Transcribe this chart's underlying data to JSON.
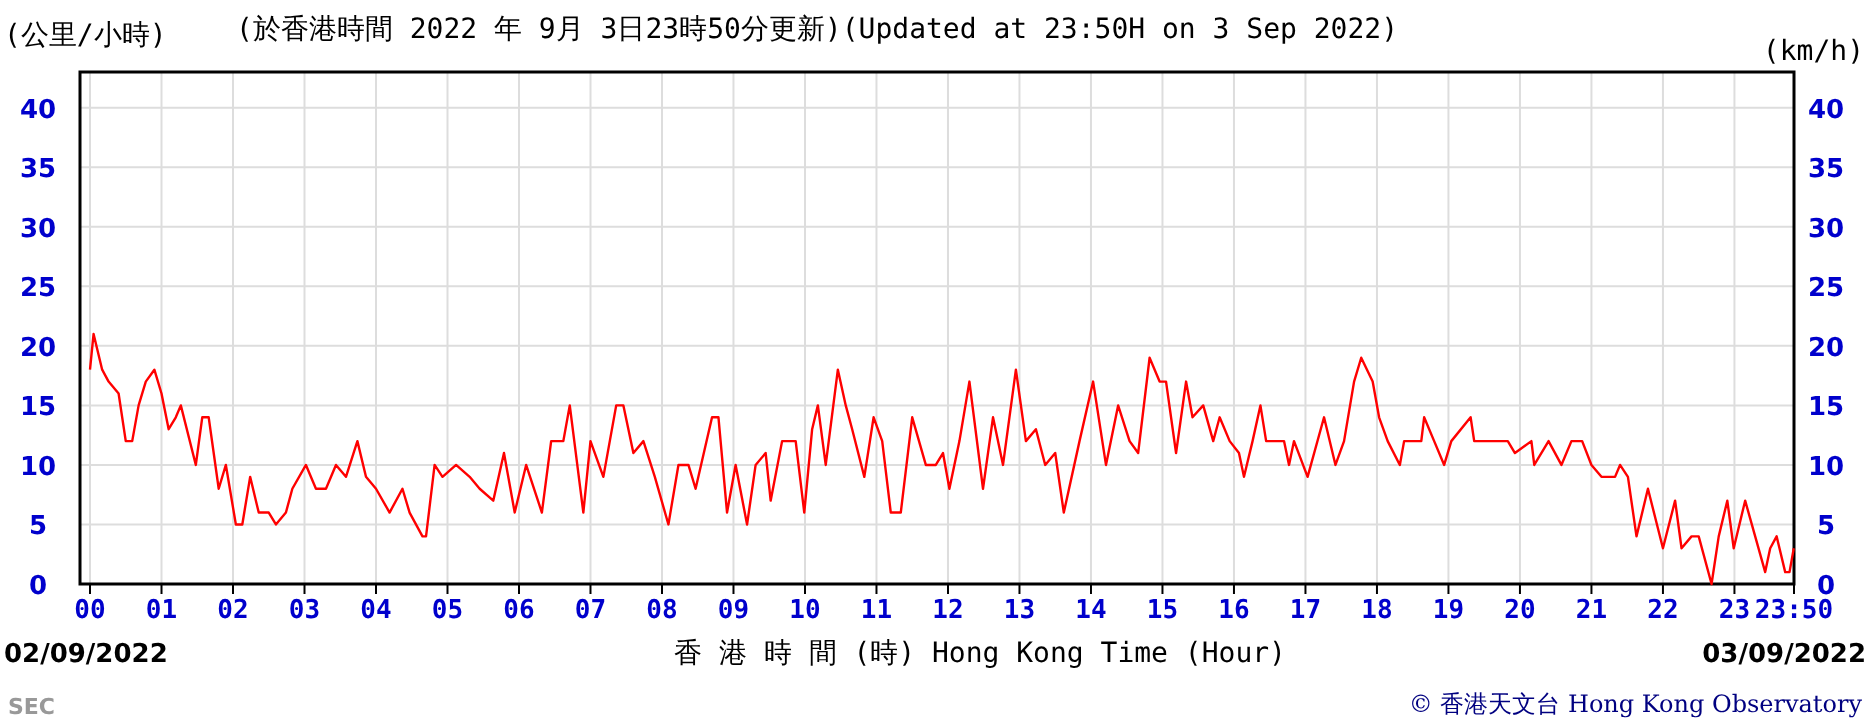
{
  "chart_data": {
    "type": "line",
    "title": "(於香港時間 2022 年 9月 3日23時50分更新)(Updated at 23:50H on 3 Sep 2022)",
    "xlabel": "香 港 時 間 (時) Hong Kong Time (Hour)",
    "ylabel": "(公里/小時)",
    "y2label": "(km/h)",
    "x": [
      0,
      0.05,
      0.17,
      0.26,
      0.4,
      0.5,
      0.59,
      0.68,
      0.78,
      0.9,
      1.0,
      1.1,
      1.2,
      1.27,
      1.48,
      1.57,
      1.66,
      1.8,
      1.9,
      2.04,
      2.13,
      2.24,
      2.36,
      2.5,
      2.6,
      2.74,
      2.83,
      3.02,
      3.16,
      3.3,
      3.44,
      3.58,
      3.74,
      3.86,
      4.0,
      4.19,
      4.37,
      4.47,
      4.65,
      4.7,
      4.82,
      4.93,
      5.12,
      5.31,
      5.45,
      5.64,
      5.79,
      5.94,
      6.1,
      6.32,
      6.45,
      6.62,
      6.71,
      6.9,
      7.0,
      7.18,
      7.36,
      7.46,
      7.6,
      7.74,
      7.9,
      8.09,
      8.23,
      8.37,
      8.47,
      8.7,
      8.79,
      8.91,
      9.03,
      9.19,
      9.31,
      9.45,
      9.52,
      9.68,
      9.87,
      9.99,
      10.1,
      10.18,
      10.29,
      10.46,
      10.57,
      10.66,
      10.83,
      10.96,
      11.08,
      11.2,
      11.34,
      11.5,
      11.69,
      11.83,
      11.93,
      12.02,
      12.16,
      12.3,
      12.49,
      12.63,
      12.77,
      12.95,
      13.09,
      13.23,
      13.36,
      13.5,
      13.62,
      13.84,
      14.03,
      14.21,
      14.38,
      14.54,
      14.66,
      14.82,
      14.96,
      15.05,
      15.19,
      15.33,
      15.42,
      15.57,
      15.71,
      15.8,
      15.94,
      16.07,
      16.14,
      16.26,
      16.37,
      16.45,
      16.7,
      16.77,
      16.84,
      17.03,
      17.26,
      17.42,
      17.54,
      17.68,
      17.78,
      17.94,
      18.03,
      18.15,
      18.32,
      18.38,
      18.62,
      18.66,
      18.8,
      18.94,
      19.04,
      19.31,
      19.36,
      19.83,
      19.93,
      20.16,
      20.2,
      20.4,
      20.58,
      20.72,
      20.87,
      21.0,
      21.14,
      21.33,
      21.4,
      21.51,
      21.63,
      21.79,
      22.0,
      22.17,
      22.26,
      22.4,
      22.5,
      22.68,
      22.78,
      22.9,
      22.99,
      23.15,
      23.29,
      23.43,
      23.5,
      23.59,
      23.71,
      23.77,
      23.83
    ],
    "values": [
      18,
      21,
      18,
      17,
      16,
      12,
      12,
      15,
      17,
      18,
      16,
      13,
      14,
      15,
      10,
      14,
      14,
      8,
      10,
      5,
      5,
      9,
      6,
      6,
      5,
      6,
      8,
      10,
      8,
      8,
      10,
      9,
      12,
      9,
      8,
      6,
      8,
      6,
      4,
      4,
      10,
      9,
      10,
      9,
      8,
      7,
      11,
      6,
      10,
      6,
      12,
      12,
      15,
      6,
      12,
      9,
      15,
      15,
      11,
      12,
      9,
      5,
      10,
      10,
      8,
      14,
      14,
      6,
      10,
      5,
      10,
      11,
      7,
      12,
      12,
      6,
      13,
      15,
      10,
      18,
      15,
      13,
      9,
      14,
      12,
      6,
      6,
      14,
      10,
      10,
      11,
      8,
      12,
      17,
      8,
      14,
      10,
      18,
      12,
      13,
      10,
      11,
      6,
      12,
      17,
      10,
      15,
      12,
      11,
      19,
      17,
      17,
      11,
      17,
      14,
      15,
      12,
      14,
      12,
      11,
      9,
      12,
      15,
      12,
      12,
      10,
      12,
      9,
      14,
      10,
      12,
      17,
      19,
      17,
      14,
      12,
      10,
      12,
      12,
      14,
      12,
      10,
      12,
      14,
      12,
      12,
      11,
      12,
      10,
      12,
      10,
      12,
      12,
      10,
      9,
      9,
      10,
      9,
      4,
      8,
      3,
      7,
      3,
      4,
      4,
      0,
      4,
      7,
      3,
      7,
      4,
      1,
      3,
      4,
      1,
      1,
      3
    ],
    "color": "#ff0000",
    "xlim": [
      -0.14,
      23.833
    ],
    "xticks": [
      {
        "value": 0,
        "label": "00"
      },
      {
        "value": 1,
        "label": "01"
      },
      {
        "value": 2,
        "label": "02"
      },
      {
        "value": 3,
        "label": "03"
      },
      {
        "value": 4,
        "label": "04"
      },
      {
        "value": 5,
        "label": "05"
      },
      {
        "value": 6,
        "label": "06"
      },
      {
        "value": 7,
        "label": "07"
      },
      {
        "value": 8,
        "label": "08"
      },
      {
        "value": 9,
        "label": "09"
      },
      {
        "value": 10,
        "label": "10"
      },
      {
        "value": 11,
        "label": "11"
      },
      {
        "value": 12,
        "label": "12"
      },
      {
        "value": 13,
        "label": "13"
      },
      {
        "value": 14,
        "label": "14"
      },
      {
        "value": 15,
        "label": "15"
      },
      {
        "value": 16,
        "label": "16"
      },
      {
        "value": 17,
        "label": "17"
      },
      {
        "value": 18,
        "label": "18"
      },
      {
        "value": 19,
        "label": "19"
      },
      {
        "value": 20,
        "label": "20"
      },
      {
        "value": 21,
        "label": "21"
      },
      {
        "value": 22,
        "label": "22"
      },
      {
        "value": 23,
        "label": "23"
      },
      {
        "value": 23.833,
        "label": "23:50"
      }
    ],
    "ylim": [
      0,
      43
    ],
    "yticks": [
      0,
      5,
      10,
      15,
      20,
      25,
      30,
      35,
      40
    ],
    "y2lim": [
      0,
      43
    ],
    "y2ticks": [
      0,
      5,
      10,
      15,
      20,
      25,
      30,
      35,
      40
    ],
    "grid": true,
    "annotations": [
      "02/09/2022",
      "03/09/2022",
      "SEC",
      "© 香港天文台 Hong Kong Observatory"
    ]
  }
}
